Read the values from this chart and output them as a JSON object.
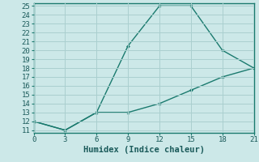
{
  "xlabel": "Humidex (Indice chaleur)",
  "line1_x": [
    0,
    3,
    6,
    9,
    12,
    15,
    18,
    21
  ],
  "line1_y": [
    12,
    11,
    13,
    20.5,
    25,
    25,
    20,
    18
  ],
  "line2_x": [
    0,
    3,
    6,
    9,
    12,
    15,
    18,
    21
  ],
  "line2_y": [
    12,
    11,
    13,
    13,
    14,
    15.5,
    17,
    18
  ],
  "line_color": "#1a7a6e",
  "bg_color": "#cce8e8",
  "grid_color": "#aacfcf",
  "xlim": [
    0,
    21
  ],
  "ylim": [
    11,
    25
  ],
  "xticks": [
    0,
    3,
    6,
    9,
    12,
    15,
    18,
    21
  ],
  "yticks": [
    11,
    12,
    13,
    14,
    15,
    16,
    17,
    18,
    19,
    20,
    21,
    22,
    23,
    24,
    25
  ],
  "label_fontsize": 7.5,
  "tick_fontsize": 6.5
}
